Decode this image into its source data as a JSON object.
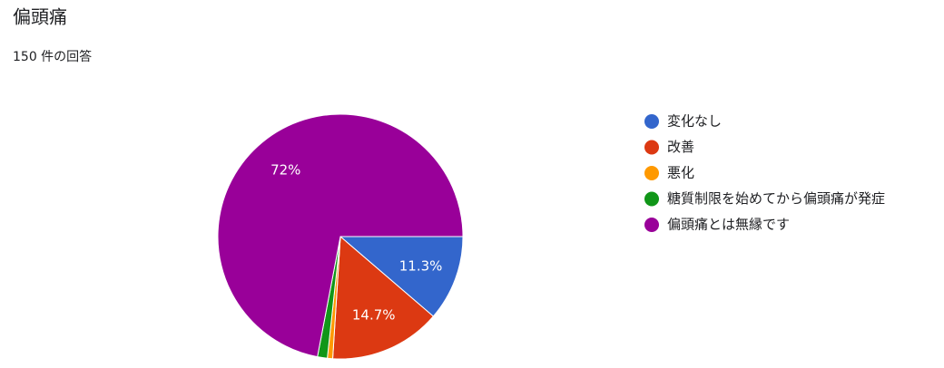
{
  "chart_data": {
    "type": "pie",
    "title": "偏頭痛",
    "subtitle": "150 件の回答",
    "categories": [
      "変化なし",
      "改善",
      "悪化",
      "糖質制限を始めてから偏頭痛が発症",
      "偏頭痛とは無縁です"
    ],
    "values": [
      11.3,
      14.7,
      0.7,
      1.3,
      72
    ],
    "value_labels": [
      "11.3%",
      "14.7%",
      null,
      null,
      "72%"
    ],
    "colors": [
      "#3366cc",
      "#dc3912",
      "#ff9900",
      "#109618",
      "#990099"
    ],
    "legend": "right"
  }
}
